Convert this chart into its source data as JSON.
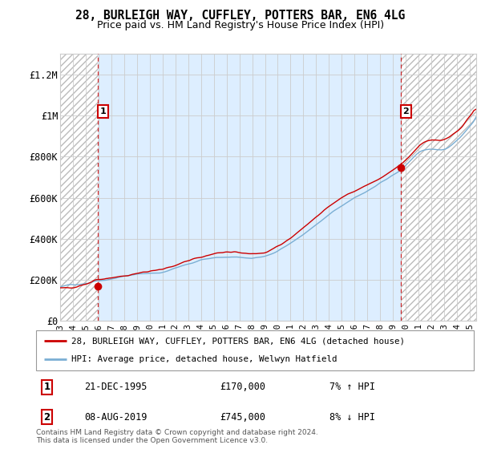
{
  "title": "28, BURLEIGH WAY, CUFFLEY, POTTERS BAR, EN6 4LG",
  "subtitle": "Price paid vs. HM Land Registry's House Price Index (HPI)",
  "ylabel_ticks": [
    "£0",
    "£200K",
    "£400K",
    "£600K",
    "£800K",
    "£1M",
    "£1.2M"
  ],
  "ytick_vals": [
    0,
    200000,
    400000,
    600000,
    800000,
    1000000,
    1200000
  ],
  "ylim": [
    0,
    1300000
  ],
  "xlim_start": 1993.0,
  "xlim_end": 2025.5,
  "hatch_color": "#aaaaaa",
  "owned_bg_color": "#ddeeff",
  "unowned_bg_color": "#ffffff",
  "grid_color": "#cccccc",
  "sale1_x": 1995.97,
  "sale1_y": 170000,
  "sale1_label": "1",
  "sale2_x": 2019.6,
  "sale2_y": 745000,
  "sale2_label": "2",
  "line_color_property": "#cc0000",
  "line_color_hpi": "#7bafd4",
  "dashed_line_color": "#cc0000",
  "legend_property": "28, BURLEIGH WAY, CUFFLEY, POTTERS BAR, EN6 4LG (detached house)",
  "legend_hpi": "HPI: Average price, detached house, Welwyn Hatfield",
  "note1_date": "21-DEC-1995",
  "note1_price": "£170,000",
  "note1_hpi": "7% ↑ HPI",
  "note2_date": "08-AUG-2019",
  "note2_price": "£745,000",
  "note2_hpi": "8% ↓ HPI",
  "footer": "Contains HM Land Registry data © Crown copyright and database right 2024.\nThis data is licensed under the Open Government Licence v3.0.",
  "xtick_years": [
    "1993",
    "1994",
    "1995",
    "1996",
    "1997",
    "1998",
    "1999",
    "2000",
    "2001",
    "2002",
    "2003",
    "2004",
    "2005",
    "2006",
    "2007",
    "2008",
    "2009",
    "2010",
    "2011",
    "2012",
    "2013",
    "2014",
    "2015",
    "2016",
    "2017",
    "2018",
    "2019",
    "2020",
    "2021",
    "2022",
    "2023",
    "2024",
    "2025"
  ],
  "xtick_vals": [
    1993,
    1994,
    1995,
    1996,
    1997,
    1998,
    1999,
    2000,
    2001,
    2002,
    2003,
    2004,
    2005,
    2006,
    2007,
    2008,
    2009,
    2010,
    2011,
    2012,
    2013,
    2014,
    2015,
    2016,
    2017,
    2018,
    2019,
    2020,
    2021,
    2022,
    2023,
    2024,
    2025
  ]
}
